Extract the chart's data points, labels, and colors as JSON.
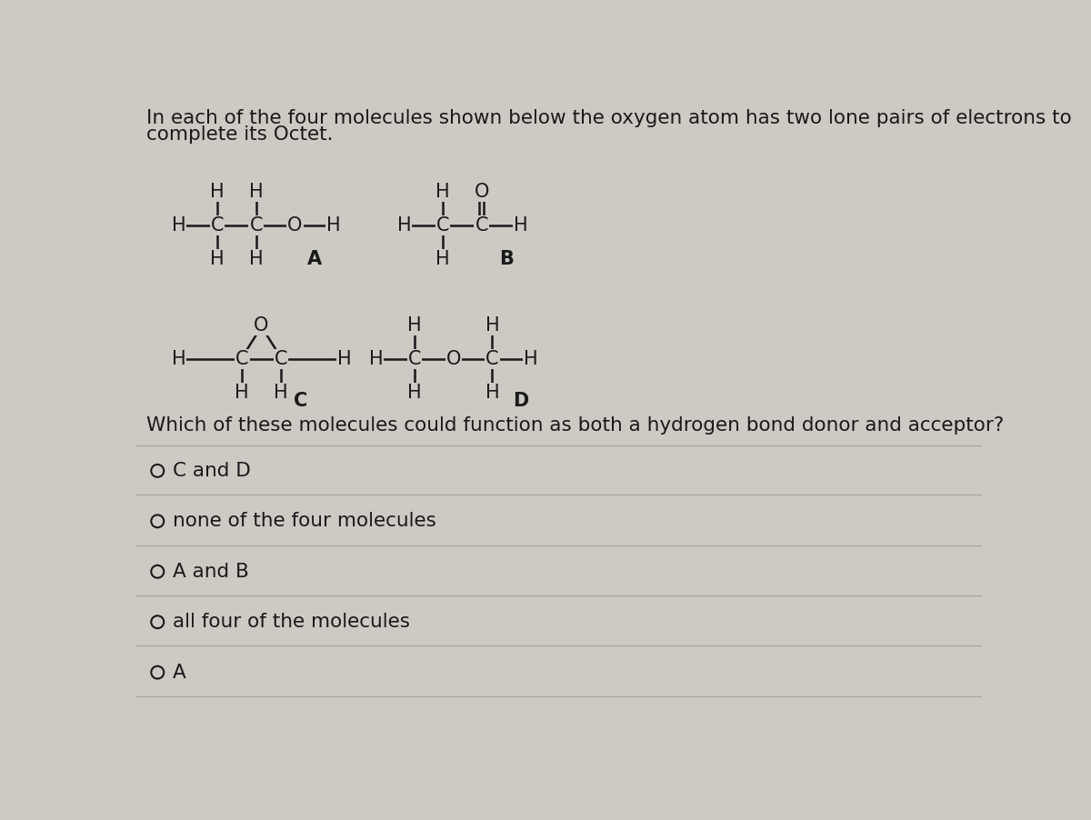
{
  "bg_color": "#cdc9c3",
  "text_color": "#1a1a1a",
  "intro_line1": "In each of the four molecules shown below the oxygen atom has two lone pairs of electrons to",
  "intro_line2": "complete its Octet.",
  "question_text": "Which of these molecules could function as both a hydrogen bond donor and acceptor?",
  "options": [
    "C and D",
    "none of the four molecules",
    "A and B",
    "all four of the molecules",
    "A"
  ],
  "font_size_main": 15.5,
  "font_size_mol": 15,
  "divider_color": "#aaa49e"
}
